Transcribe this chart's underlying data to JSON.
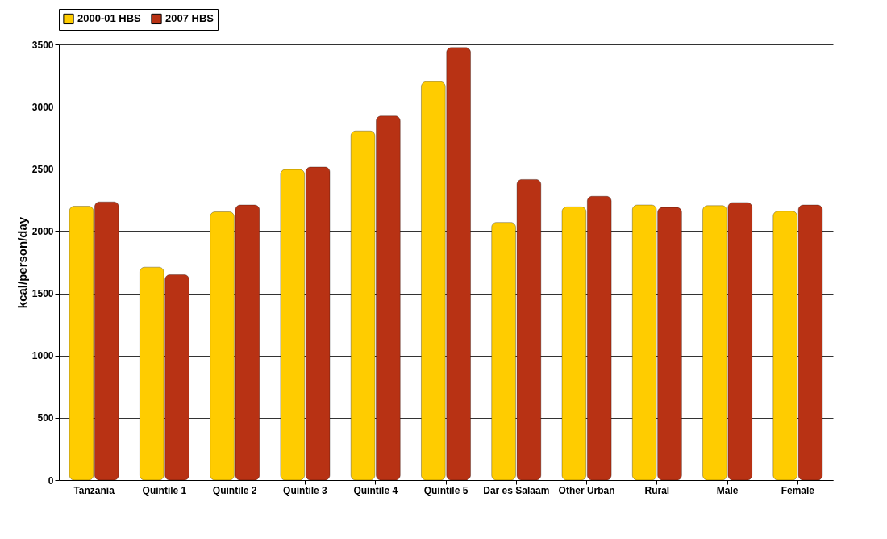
{
  "chart_data": {
    "type": "bar",
    "ylabel": "kcal/person/day",
    "categories": [
      "Tanzania",
      "Quintile 1",
      "Quintile 2",
      "Quintile 3",
      "Quintile 4",
      "Quintile 5",
      "Dar es Salaam",
      "Other Urban",
      "Rural",
      "Male",
      "Female"
    ],
    "series": [
      {
        "name": "2000-01 HBS",
        "color": "#ffcc00",
        "values": [
          2200,
          1710,
          2155,
          2495,
          2805,
          3200,
          2070,
          2195,
          2210,
          2205,
          2160
        ]
      },
      {
        "name": "2007 HBS",
        "color": "#b83214",
        "values": [
          2235,
          1650,
          2210,
          2515,
          2925,
          3475,
          2415,
          2280,
          2190,
          2230,
          2210
        ]
      }
    ],
    "ylim": [
      0,
      3500
    ],
    "yticks": [
      0,
      500,
      1000,
      1500,
      2000,
      2500,
      3000,
      3500
    ],
    "grid": "y",
    "legend": "top"
  }
}
